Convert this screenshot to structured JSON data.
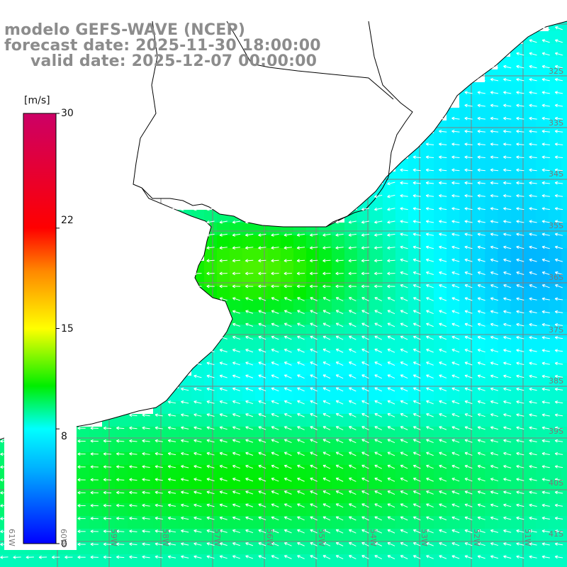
{
  "title": {
    "line1": "modelo GEFS-WAVE (NCEP)",
    "line2": "forecast date: 2025-11-30 18:00:00",
    "line3": "valid date: 2025-12-07 00:00:00"
  },
  "colorbar": {
    "units": "[m/s]",
    "ticks": [
      "30",
      "22",
      "15",
      "8",
      "0"
    ],
    "tick_values": [
      30,
      22,
      15,
      8,
      0
    ],
    "range": [
      0,
      30
    ],
    "colors": [
      "#0000ff",
      "#00aaff",
      "#00ffff",
      "#00ee00",
      "#ffff00",
      "#ff8800",
      "#ff0000",
      "#cc0066"
    ]
  },
  "map": {
    "variable": "wind speed and direction",
    "lat_labels": [
      "32S",
      "33S",
      "34S",
      "35S",
      "36S",
      "37S",
      "38S",
      "39S",
      "40S",
      "41S"
    ],
    "lon_labels": [
      "61W",
      "60W",
      "59W",
      "58W",
      "57W",
      "56W",
      "55W",
      "54W",
      "53W",
      "52W",
      "51W"
    ],
    "land_color": "#ffffff",
    "grid_color": "#808080"
  }
}
